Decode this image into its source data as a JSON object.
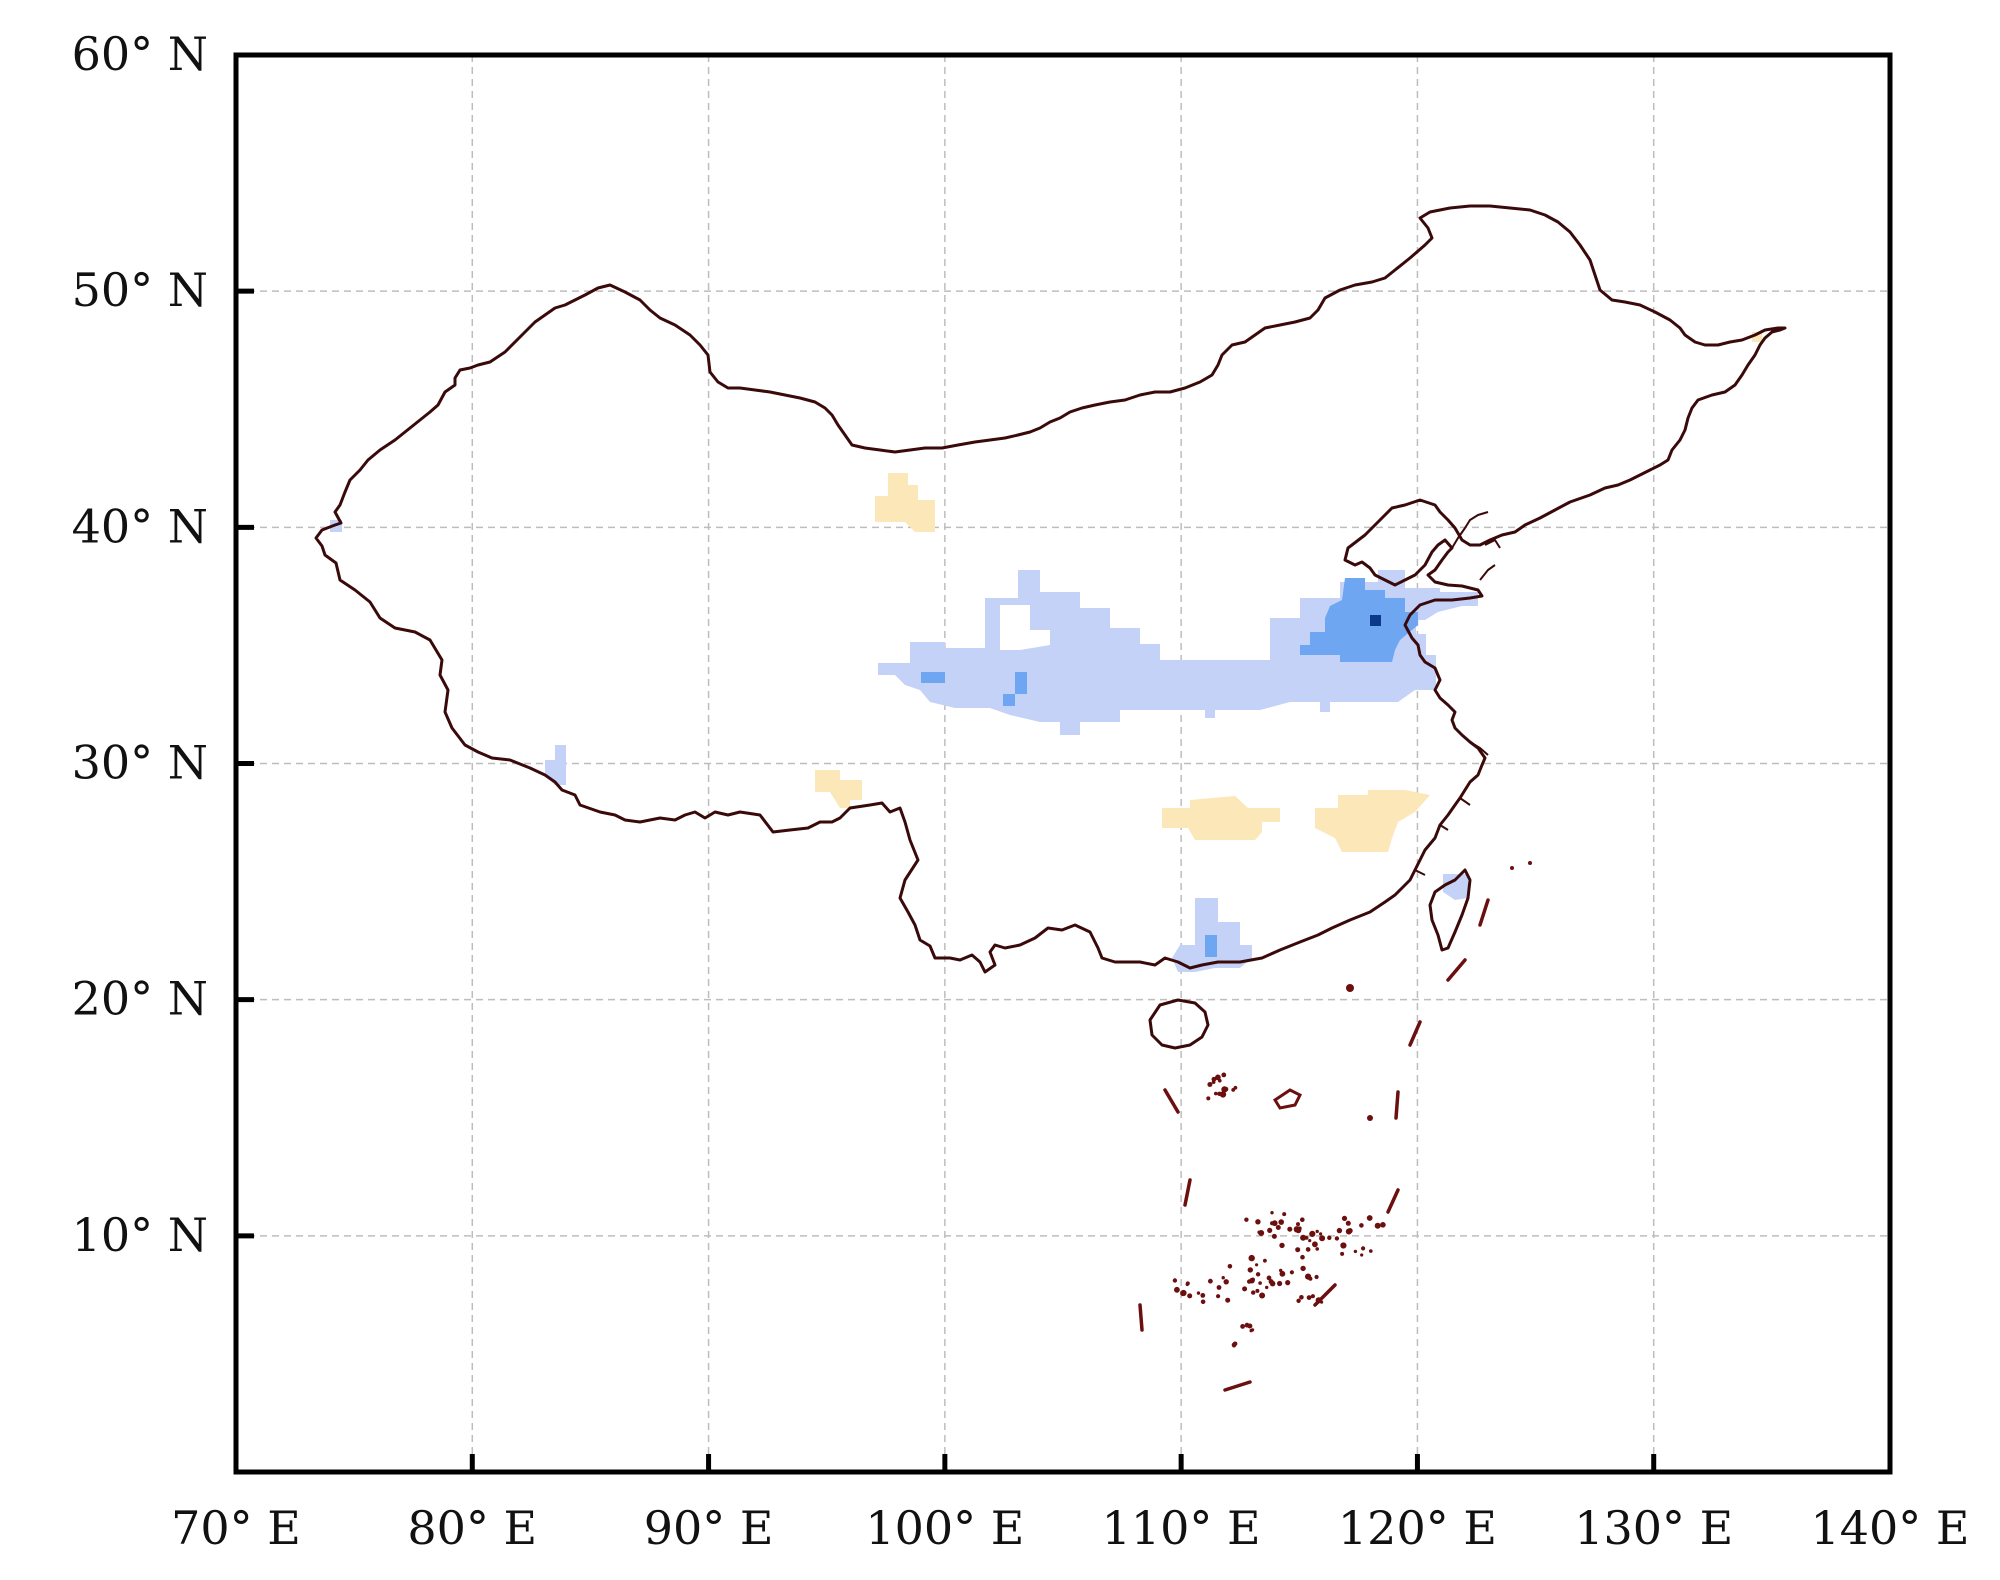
{
  "axes": {
    "x_ticks": [
      {
        "lon": 70,
        "label": "70° E"
      },
      {
        "lon": 80,
        "label": "80° E"
      },
      {
        "lon": 90,
        "label": "90° E"
      },
      {
        "lon": 100,
        "label": "100° E"
      },
      {
        "lon": 110,
        "label": "110° E"
      },
      {
        "lon": 120,
        "label": "120° E"
      },
      {
        "lon": 130,
        "label": "130° E"
      },
      {
        "lon": 140,
        "label": "140° E"
      }
    ],
    "y_ticks": [
      {
        "lat": 60,
        "label": "60° N"
      },
      {
        "lat": 50,
        "label": "50° N"
      },
      {
        "lat": 40,
        "label": "40° N"
      },
      {
        "lat": 30,
        "label": "30° N"
      },
      {
        "lat": 20,
        "label": "20° N"
      },
      {
        "lat": 10,
        "label": "10° N"
      }
    ],
    "lon_range": [
      70,
      140
    ],
    "lat_range": [
      0,
      60
    ],
    "grid": true
  },
  "colors": {
    "border": "#3a0a0a",
    "island": "#6b0f0f",
    "light_blue": "#c5d2f8",
    "mid_blue": "#6fa6f2",
    "dark_blue": "#0b3a8c",
    "light_yellow": "#fbe7b8",
    "grid": "#bdbdbd"
  }
}
